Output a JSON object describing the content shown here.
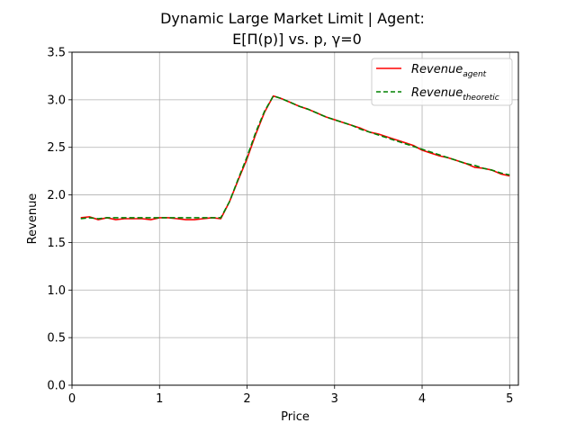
{
  "chart_data": {
    "type": "line",
    "title_line1": "Dynamic Large Market Limit | Agent:",
    "title_line2": "E[Π(p)] vs. p, γ=0",
    "xlabel": "Price",
    "ylabel": "Revenue",
    "xlim": [
      0,
      5.1
    ],
    "ylim": [
      0,
      3.5
    ],
    "x_ticks": [
      0,
      1,
      2,
      3,
      4,
      5
    ],
    "x_tick_labels": [
      "0",
      "1",
      "2",
      "3",
      "4",
      "5"
    ],
    "y_ticks": [
      0,
      0.5,
      1.0,
      1.5,
      2.0,
      2.5,
      3.0,
      3.5
    ],
    "y_tick_labels": [
      "0.0",
      "0.5",
      "1.0",
      "1.5",
      "2.0",
      "2.5",
      "3.0",
      "3.5"
    ],
    "grid": true,
    "legend_position": "top-right",
    "x": [
      0.1,
      0.2,
      0.3,
      0.4,
      0.5,
      0.6,
      0.7,
      0.8,
      0.9,
      1.0,
      1.1,
      1.2,
      1.3,
      1.4,
      1.5,
      1.6,
      1.7,
      1.8,
      1.9,
      2.0,
      2.1,
      2.2,
      2.3,
      2.4,
      2.5,
      2.6,
      2.7,
      2.8,
      2.9,
      3.0,
      3.1,
      3.2,
      3.3,
      3.4,
      3.5,
      3.6,
      3.7,
      3.8,
      3.9,
      4.0,
      4.1,
      4.2,
      4.3,
      4.4,
      4.5,
      4.6,
      4.7,
      4.8,
      4.9,
      5.0
    ],
    "series": [
      {
        "name_base": "Revenue",
        "name_sub": "agent",
        "color": "#ff0000",
        "style": "solid",
        "values": [
          1.76,
          1.77,
          1.74,
          1.76,
          1.74,
          1.75,
          1.75,
          1.75,
          1.74,
          1.76,
          1.76,
          1.75,
          1.74,
          1.74,
          1.75,
          1.76,
          1.75,
          1.93,
          2.16,
          2.38,
          2.64,
          2.87,
          3.04,
          3.01,
          2.97,
          2.93,
          2.9,
          2.86,
          2.82,
          2.79,
          2.76,
          2.73,
          2.7,
          2.66,
          2.64,
          2.61,
          2.58,
          2.55,
          2.52,
          2.47,
          2.44,
          2.41,
          2.39,
          2.36,
          2.33,
          2.29,
          2.28,
          2.26,
          2.22,
          2.2
        ]
      },
      {
        "name_base": "Revenue",
        "name_sub": "theoretic",
        "color": "#008000",
        "style": "dashed",
        "values": [
          1.75,
          1.76,
          1.75,
          1.76,
          1.76,
          1.76,
          1.76,
          1.76,
          1.76,
          1.76,
          1.76,
          1.76,
          1.76,
          1.76,
          1.76,
          1.76,
          1.76,
          1.93,
          2.17,
          2.4,
          2.66,
          2.88,
          3.04,
          3.01,
          2.97,
          2.93,
          2.9,
          2.86,
          2.82,
          2.79,
          2.76,
          2.73,
          2.69,
          2.66,
          2.63,
          2.6,
          2.57,
          2.54,
          2.51,
          2.48,
          2.45,
          2.42,
          2.39,
          2.36,
          2.33,
          2.31,
          2.28,
          2.26,
          2.23,
          2.21
        ]
      }
    ]
  }
}
